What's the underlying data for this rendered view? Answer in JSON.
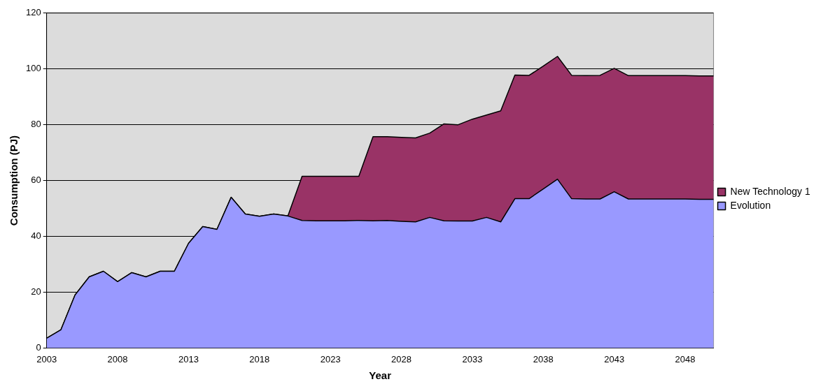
{
  "chart_data": {
    "type": "area",
    "stacked": true,
    "xlabel": "Year",
    "ylabel": "Consumption (PJ)",
    "categories": [
      "2003",
      null,
      null,
      null,
      null,
      "2008",
      null,
      null,
      null,
      null,
      "2013",
      null,
      null,
      null,
      null,
      "2018",
      null,
      null,
      null,
      null,
      "2023",
      null,
      null,
      null,
      null,
      "2028",
      null,
      null,
      null,
      null,
      "2033",
      null,
      null,
      null,
      null,
      "2038",
      null,
      null,
      null,
      null,
      "2043",
      null,
      null,
      null,
      null,
      "2048",
      null,
      null
    ],
    "series": [
      {
        "name": "Evolution",
        "color": "#9999ff",
        "values": [
          3.5,
          6.5,
          19,
          25.5,
          27.5,
          23.8,
          27,
          25.5,
          27.5,
          27.5,
          37.5,
          43.5,
          42.5,
          54,
          48,
          47.2,
          48,
          47.3,
          45.7,
          45.6,
          45.6,
          45.6,
          45.7,
          45.6,
          45.7,
          45.4,
          45.2,
          46.8,
          45.6,
          45.5,
          45.5,
          46.8,
          45.2,
          53.5,
          53.5,
          57,
          60.5,
          53.5,
          53.4,
          53.4,
          56,
          53.4,
          53.4,
          53.4,
          53.4,
          53.4,
          53.3,
          53.3
        ]
      },
      {
        "name": "New Technology 1",
        "color": "#993366",
        "values": [
          0,
          0,
          0,
          0,
          0,
          0,
          0,
          0,
          0,
          0,
          0,
          0,
          0,
          0,
          0,
          0,
          0,
          0,
          15.8,
          15.9,
          15.9,
          15.9,
          15.8,
          30.1,
          30,
          30.1,
          30.1,
          30.2,
          34.7,
          34.5,
          36.5,
          36.7,
          39.8,
          44.3,
          44.2,
          44,
          44,
          44.2,
          44.2,
          44.3,
          44.2,
          44.2,
          44.2,
          44.2,
          44.2,
          44.2,
          44.2,
          44.2
        ]
      }
    ],
    "ylim": [
      0,
      120
    ],
    "yticks": [
      0,
      20,
      40,
      60,
      80,
      100,
      120
    ],
    "grid": "y",
    "legend": "right"
  }
}
